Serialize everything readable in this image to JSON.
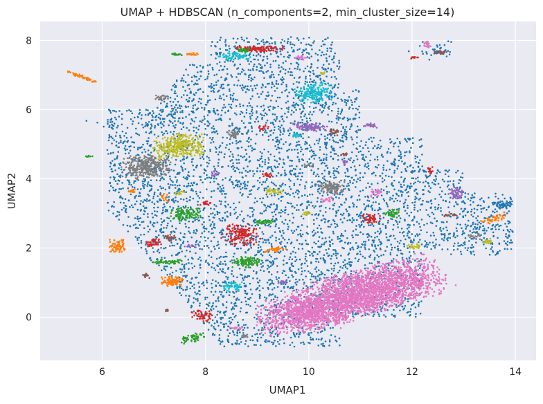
{
  "chart_data": {
    "type": "scatter",
    "title": "UMAP + HDBSCAN (n_components=2, min_cluster_size=14)",
    "xlabel": "UMAP1",
    "ylabel": "UMAP2",
    "xlim": [
      4.8,
      14.4
    ],
    "ylim": [
      -1.25,
      8.55
    ],
    "xticks": [
      6,
      8,
      10,
      12,
      14
    ],
    "yticks": [
      0,
      2,
      4,
      6,
      8
    ],
    "grid": true,
    "background": "#eaeaf2",
    "gridColor": "#ffffff",
    "noiseColor": "#1f77b4",
    "clusters": [
      {
        "x": 11.1,
        "y": 0.75,
        "rx": 1.35,
        "ry": 0.55,
        "rot": 22,
        "n": 2600,
        "color": "#e377c2"
      },
      {
        "x": 9.9,
        "y": 0.1,
        "rx": 0.8,
        "ry": 0.45,
        "rot": 10,
        "n": 900,
        "color": "#e377c2"
      },
      {
        "x": 6.85,
        "y": 4.35,
        "rx": 0.42,
        "ry": 0.3,
        "rot": 0,
        "n": 320,
        "color": "#7f7f7f"
      },
      {
        "x": 7.5,
        "y": 4.95,
        "rx": 0.45,
        "ry": 0.3,
        "rot": 10,
        "n": 320,
        "color": "#bcbd22"
      },
      {
        "x": 10.1,
        "y": 6.5,
        "rx": 0.32,
        "ry": 0.25,
        "rot": 0,
        "n": 180,
        "color": "#17becf"
      },
      {
        "x": 8.7,
        "y": 2.4,
        "rx": 0.3,
        "ry": 0.28,
        "rot": 0,
        "n": 150,
        "color": "#d62728"
      },
      {
        "x": 10.45,
        "y": 3.75,
        "rx": 0.22,
        "ry": 0.16,
        "rot": 0,
        "n": 110,
        "color": "#7f7f7f"
      },
      {
        "x": 10.0,
        "y": 5.5,
        "rx": 0.3,
        "ry": 0.1,
        "rot": -8,
        "n": 100,
        "color": "#9467bd"
      },
      {
        "x": 7.35,
        "y": 1.05,
        "rx": 0.2,
        "ry": 0.13,
        "rot": 0,
        "n": 100,
        "color": "#ff7f0e"
      },
      {
        "x": 6.3,
        "y": 2.05,
        "rx": 0.14,
        "ry": 0.2,
        "rot": 0,
        "n": 80,
        "color": "#ff7f0e"
      },
      {
        "x": 7.6,
        "y": 3.0,
        "rx": 0.25,
        "ry": 0.18,
        "rot": 0,
        "n": 110,
        "color": "#2ca02c"
      },
      {
        "x": 8.8,
        "y": 1.6,
        "rx": 0.25,
        "ry": 0.14,
        "rot": 0,
        "n": 110,
        "color": "#2ca02c"
      },
      {
        "x": 9.05,
        "y": 7.75,
        "rx": 0.4,
        "ry": 0.08,
        "rot": 0,
        "n": 110,
        "color": "#d62728"
      },
      {
        "x": 8.55,
        "y": 7.55,
        "rx": 0.28,
        "ry": 0.12,
        "rot": 0,
        "n": 70,
        "color": "#17becf"
      },
      {
        "x": 12.85,
        "y": 3.6,
        "rx": 0.13,
        "ry": 0.2,
        "rot": 0,
        "n": 60,
        "color": "#9467bd"
      },
      {
        "x": 7.25,
        "y": 1.6,
        "rx": 0.25,
        "ry": 0.07,
        "rot": 0,
        "n": 60,
        "color": "#2ca02c"
      },
      {
        "x": 7.75,
        "y": -0.6,
        "rx": 0.24,
        "ry": 0.1,
        "rot": 25,
        "n": 60,
        "color": "#2ca02c"
      },
      {
        "x": 7.95,
        "y": 0.05,
        "rx": 0.2,
        "ry": 0.14,
        "rot": -20,
        "n": 50,
        "color": "#d62728"
      },
      {
        "x": 8.5,
        "y": 0.9,
        "rx": 0.18,
        "ry": 0.12,
        "rot": 0,
        "n": 50,
        "color": "#17becf"
      },
      {
        "x": 11.2,
        "y": 2.85,
        "rx": 0.15,
        "ry": 0.15,
        "rot": 0,
        "n": 50,
        "color": "#d62728"
      },
      {
        "x": 11.6,
        "y": 3.0,
        "rx": 0.12,
        "ry": 0.14,
        "rot": 0,
        "n": 40,
        "color": "#2ca02c"
      },
      {
        "x": 13.6,
        "y": 2.85,
        "rx": 0.22,
        "ry": 0.08,
        "rot": 30,
        "n": 50,
        "color": "#ff7f0e"
      },
      {
        "x": 13.75,
        "y": 3.25,
        "rx": 0.2,
        "ry": 0.1,
        "rot": 0,
        "n": 50,
        "color": "#1f77b4"
      },
      {
        "x": 5.6,
        "y": 6.95,
        "rx": 0.32,
        "ry": 0.04,
        "rot": -28,
        "n": 60,
        "color": "#ff7f0e"
      },
      {
        "x": 7.0,
        "y": 2.15,
        "rx": 0.16,
        "ry": 0.1,
        "rot": 0,
        "n": 40,
        "color": "#d62728"
      },
      {
        "x": 9.35,
        "y": 1.95,
        "rx": 0.18,
        "ry": 0.06,
        "rot": 15,
        "n": 35,
        "color": "#ff7f0e"
      },
      {
        "x": 9.15,
        "y": 2.75,
        "rx": 0.15,
        "ry": 0.06,
        "rot": 0,
        "n": 35,
        "color": "#2ca02c"
      },
      {
        "x": 8.55,
        "y": 5.3,
        "rx": 0.12,
        "ry": 0.12,
        "rot": 0,
        "n": 30,
        "color": "#7f7f7f"
      },
      {
        "x": 9.35,
        "y": 3.65,
        "rx": 0.15,
        "ry": 0.08,
        "rot": 0,
        "n": 30,
        "color": "#bcbd22"
      },
      {
        "x": 7.3,
        "y": 2.3,
        "rx": 0.1,
        "ry": 0.1,
        "rot": 0,
        "n": 30,
        "color": "#8c564b"
      },
      {
        "x": 7.15,
        "y": 6.35,
        "rx": 0.12,
        "ry": 0.08,
        "rot": 0,
        "n": 30,
        "color": "#7f7f7f"
      },
      {
        "x": 11.2,
        "y": 5.55,
        "rx": 0.12,
        "ry": 0.06,
        "rot": 0,
        "n": 25,
        "color": "#9467bd"
      },
      {
        "x": 11.3,
        "y": 3.6,
        "rx": 0.1,
        "ry": 0.1,
        "rot": 0,
        "n": 25,
        "color": "#e377c2"
      },
      {
        "x": 12.3,
        "y": 7.9,
        "rx": 0.06,
        "ry": 0.08,
        "rot": 0,
        "n": 20,
        "color": "#e377c2"
      },
      {
        "x": 12.55,
        "y": 7.65,
        "rx": 0.1,
        "ry": 0.05,
        "rot": 0,
        "n": 20,
        "color": "#8c564b"
      },
      {
        "x": 8.75,
        "y": 7.72,
        "rx": 0.1,
        "ry": 0.05,
        "rot": 0,
        "n": 25,
        "color": "#2ca02c"
      },
      {
        "x": 9.75,
        "y": 5.25,
        "rx": 0.08,
        "ry": 0.06,
        "rot": 0,
        "n": 20,
        "color": "#17becf"
      },
      {
        "x": 8.0,
        "y": 3.3,
        "rx": 0.1,
        "ry": 0.06,
        "rot": 0,
        "n": 20,
        "color": "#d62728"
      },
      {
        "x": 10.5,
        "y": 5.35,
        "rx": 0.1,
        "ry": 0.08,
        "rot": 0,
        "n": 20,
        "color": "#8c564b"
      },
      {
        "x": 9.2,
        "y": 4.1,
        "rx": 0.08,
        "ry": 0.06,
        "rot": 0,
        "n": 18,
        "color": "#d62728"
      },
      {
        "x": 12.05,
        "y": 2.05,
        "rx": 0.12,
        "ry": 0.08,
        "rot": 0,
        "n": 25,
        "color": "#bcbd22"
      },
      {
        "x": 13.45,
        "y": 2.2,
        "rx": 0.12,
        "ry": 0.06,
        "rot": 0,
        "n": 20,
        "color": "#bcbd22"
      },
      {
        "x": 13.2,
        "y": 2.35,
        "rx": 0.1,
        "ry": 0.08,
        "rot": 0,
        "n": 20,
        "color": "#7f7f7f"
      },
      {
        "x": 9.85,
        "y": 7.5,
        "rx": 0.12,
        "ry": 0.06,
        "rot": 0,
        "n": 20,
        "color": "#e377c2"
      },
      {
        "x": 7.45,
        "y": 7.6,
        "rx": 0.1,
        "ry": 0.03,
        "rot": 0,
        "n": 18,
        "color": "#2ca02c"
      },
      {
        "x": 7.75,
        "y": 7.6,
        "rx": 0.1,
        "ry": 0.04,
        "rot": 0,
        "n": 18,
        "color": "#ff7f0e"
      },
      {
        "x": 12.35,
        "y": 4.25,
        "rx": 0.05,
        "ry": 0.1,
        "rot": 0,
        "n": 15,
        "color": "#d62728"
      },
      {
        "x": 12.75,
        "y": 2.95,
        "rx": 0.12,
        "ry": 0.04,
        "rot": 0,
        "n": 18,
        "color": "#8c564b"
      },
      {
        "x": 9.95,
        "y": 3.0,
        "rx": 0.08,
        "ry": 0.05,
        "rot": 0,
        "n": 15,
        "color": "#bcbd22"
      },
      {
        "x": 10.35,
        "y": 3.4,
        "rx": 0.12,
        "ry": 0.06,
        "rot": 0,
        "n": 18,
        "color": "#e377c2"
      },
      {
        "x": 6.55,
        "y": 3.65,
        "rx": 0.1,
        "ry": 0.05,
        "rot": 0,
        "n": 15,
        "color": "#ff7f0e"
      },
      {
        "x": 7.2,
        "y": 3.45,
        "rx": 0.08,
        "ry": 0.1,
        "rot": 0,
        "n": 15,
        "color": "#ff7f0e"
      },
      {
        "x": 8.6,
        "y": -0.3,
        "rx": 0.15,
        "ry": 0.04,
        "rot": 0,
        "n": 15,
        "color": "#e377c2"
      },
      {
        "x": 8.75,
        "y": -0.55,
        "rx": 0.08,
        "ry": 0.06,
        "rot": 0,
        "n": 15,
        "color": "#7f7f7f"
      },
      {
        "x": 6.85,
        "y": 1.2,
        "rx": 0.08,
        "ry": 0.06,
        "rot": 0,
        "n": 12,
        "color": "#8c564b"
      },
      {
        "x": 12.05,
        "y": 7.5,
        "rx": 0.08,
        "ry": 0.03,
        "rot": 0,
        "n": 12,
        "color": "#d62728"
      },
      {
        "x": 10.25,
        "y": 7.05,
        "rx": 0.06,
        "ry": 0.04,
        "rot": 0,
        "n": 12,
        "color": "#bcbd22"
      },
      {
        "x": 9.1,
        "y": 5.45,
        "rx": 0.1,
        "ry": 0.1,
        "rot": 0,
        "n": 15,
        "color": "#d62728"
      },
      {
        "x": 10.7,
        "y": 4.7,
        "rx": 0.08,
        "ry": 0.05,
        "rot": 0,
        "n": 12,
        "color": "#8c564b"
      },
      {
        "x": 10.7,
        "y": 4.45,
        "rx": 0.06,
        "ry": 0.1,
        "rot": 0,
        "n": 12,
        "color": "#9467bd"
      },
      {
        "x": 7.5,
        "y": 3.6,
        "rx": 0.08,
        "ry": 0.05,
        "rot": 0,
        "n": 12,
        "color": "#bcbd22"
      },
      {
        "x": 7.7,
        "y": 2.05,
        "rx": 0.1,
        "ry": 0.05,
        "rot": 0,
        "n": 12,
        "color": "#9467bd"
      },
      {
        "x": 8.2,
        "y": 4.15,
        "rx": 0.1,
        "ry": 0.1,
        "rot": 0,
        "n": 15,
        "color": "#9467bd"
      },
      {
        "x": 9.5,
        "y": 1.0,
        "rx": 0.1,
        "ry": 0.04,
        "rot": 0,
        "n": 12,
        "color": "#9467bd"
      },
      {
        "x": 10.0,
        "y": 4.4,
        "rx": 0.1,
        "ry": 0.06,
        "rot": 0,
        "n": 12,
        "color": "#7f7f7f"
      },
      {
        "x": 5.75,
        "y": 4.65,
        "rx": 0.08,
        "ry": 0.02,
        "rot": 0,
        "n": 8,
        "color": "#2ca02c"
      },
      {
        "x": 7.25,
        "y": 0.2,
        "rx": 0.03,
        "ry": 0.04,
        "rot": 0,
        "n": 6,
        "color": "#8c564b"
      }
    ]
  }
}
